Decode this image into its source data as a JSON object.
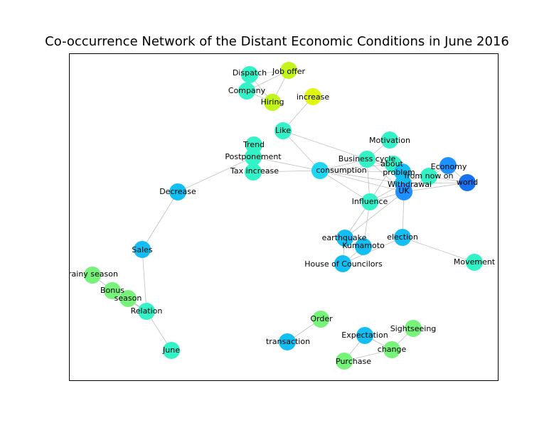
{
  "title": "Co-occurrence Network of the Distant Economic Conditions in June 2016",
  "colors": {
    "teal": "#33f2c8",
    "cyan": "#1ed6f0",
    "sky": "#13bff2",
    "blue": "#1e90ff",
    "deepblue": "#1672f0",
    "green": "#77f27a",
    "lime": "#c3f51c",
    "yellow": "#dff512",
    "edge": "#bfbfbf"
  },
  "nodes": [
    {
      "id": "dispatch",
      "label": "Dispatch",
      "color": "teal"
    },
    {
      "id": "joboffer",
      "label": "Job offer",
      "color": "lime"
    },
    {
      "id": "company",
      "label": "Company",
      "color": "teal"
    },
    {
      "id": "hiring",
      "label": "Hiring",
      "color": "lime"
    },
    {
      "id": "increase",
      "label": "increase",
      "color": "yellow"
    },
    {
      "id": "like",
      "label": "Like",
      "color": "teal"
    },
    {
      "id": "trend",
      "label": "Trend",
      "color": "teal"
    },
    {
      "id": "postponement",
      "label": "Postponement",
      "color": "teal"
    },
    {
      "id": "taxincrease",
      "label": "Tax increase",
      "color": "teal"
    },
    {
      "id": "motivation",
      "label": "Motivation",
      "color": "teal"
    },
    {
      "id": "businesscycle",
      "label": "Business cycle",
      "color": "teal"
    },
    {
      "id": "about",
      "label": "about",
      "color": "teal"
    },
    {
      "id": "consumption",
      "label": "consumption",
      "color": "cyan"
    },
    {
      "id": "problem",
      "label": "problem",
      "color": "sky"
    },
    {
      "id": "economy",
      "label": "Economy",
      "color": "blue"
    },
    {
      "id": "fromnowon",
      "label": "from now on",
      "color": "teal"
    },
    {
      "id": "world",
      "label": "world",
      "color": "deepblue"
    },
    {
      "id": "withdrawal",
      "label": "Withdrawal",
      "color": "sky"
    },
    {
      "id": "uk",
      "label": "UK",
      "color": "blue"
    },
    {
      "id": "decrease",
      "label": "Decrease",
      "color": "sky"
    },
    {
      "id": "influence",
      "label": "Influence",
      "color": "teal"
    },
    {
      "id": "earthquake",
      "label": "earthquake",
      "color": "sky"
    },
    {
      "id": "election",
      "label": "election",
      "color": "sky"
    },
    {
      "id": "kumamoto",
      "label": "Kumamoto",
      "color": "sky"
    },
    {
      "id": "houseofcouncilors",
      "label": "House of Councilors",
      "color": "sky"
    },
    {
      "id": "movement",
      "label": "Movement",
      "color": "teal"
    },
    {
      "id": "sales",
      "label": "Sales",
      "color": "sky"
    },
    {
      "id": "rainyseason",
      "label": "rainy season",
      "color": "green"
    },
    {
      "id": "bonus",
      "label": "Bonus",
      "color": "green"
    },
    {
      "id": "season",
      "label": "season",
      "color": "green"
    },
    {
      "id": "relation",
      "label": "Relation",
      "color": "teal"
    },
    {
      "id": "june",
      "label": "June",
      "color": "teal"
    },
    {
      "id": "order",
      "label": "Order",
      "color": "green"
    },
    {
      "id": "transaction",
      "label": "transaction",
      "color": "sky"
    },
    {
      "id": "expectation",
      "label": "Expectation",
      "color": "sky"
    },
    {
      "id": "sightseeing",
      "label": "Sightseeing",
      "color": "green"
    },
    {
      "id": "change",
      "label": "change",
      "color": "green"
    },
    {
      "id": "purchase",
      "label": "Purchase",
      "color": "green"
    }
  ],
  "edges": [
    [
      "dispatch",
      "company"
    ],
    [
      "dispatch",
      "hiring"
    ],
    [
      "joboffer",
      "company"
    ],
    [
      "joboffer",
      "hiring"
    ],
    [
      "dispatch",
      "joboffer"
    ],
    [
      "company",
      "hiring"
    ],
    [
      "increase",
      "like"
    ],
    [
      "like",
      "businesscycle"
    ],
    [
      "like",
      "consumption"
    ],
    [
      "taxincrease",
      "consumption"
    ],
    [
      "postponement",
      "consumption"
    ],
    [
      "trend",
      "postponement"
    ],
    [
      "postponement",
      "decrease"
    ],
    [
      "decrease",
      "sales"
    ],
    [
      "sales",
      "relation"
    ],
    [
      "rainyseason",
      "bonus"
    ],
    [
      "bonus",
      "season"
    ],
    [
      "season",
      "relation"
    ],
    [
      "bonus",
      "relation"
    ],
    [
      "relation",
      "june"
    ],
    [
      "consumption",
      "businesscycle"
    ],
    [
      "consumption",
      "about"
    ],
    [
      "consumption",
      "problem"
    ],
    [
      "consumption",
      "influence"
    ],
    [
      "consumption",
      "uk"
    ],
    [
      "consumption",
      "withdrawal"
    ],
    [
      "businesscycle",
      "about"
    ],
    [
      "businesscycle",
      "influence"
    ],
    [
      "businesscycle",
      "uk"
    ],
    [
      "businesscycle",
      "problem"
    ],
    [
      "motivation",
      "businesscycle"
    ],
    [
      "about",
      "problem"
    ],
    [
      "about",
      "uk"
    ],
    [
      "about",
      "influence"
    ],
    [
      "problem",
      "uk"
    ],
    [
      "problem",
      "withdrawal"
    ],
    [
      "uk",
      "withdrawal"
    ],
    [
      "uk",
      "world"
    ],
    [
      "uk",
      "economy"
    ],
    [
      "uk",
      "fromnowon"
    ],
    [
      "withdrawal",
      "world"
    ],
    [
      "fromnowon",
      "world"
    ],
    [
      "economy",
      "world"
    ],
    [
      "economy",
      "withdrawal"
    ],
    [
      "uk",
      "influence"
    ],
    [
      "withdrawal",
      "influence"
    ],
    [
      "influence",
      "earthquake"
    ],
    [
      "influence",
      "kumamoto"
    ],
    [
      "uk",
      "election"
    ],
    [
      "uk",
      "earthquake"
    ],
    [
      "earthquake",
      "kumamoto"
    ],
    [
      "kumamoto",
      "houseofcouncilors"
    ],
    [
      "earthquake",
      "houseofcouncilors"
    ],
    [
      "election",
      "movement"
    ],
    [
      "election",
      "houseofcouncilors"
    ],
    [
      "order",
      "transaction"
    ],
    [
      "expectation",
      "change"
    ],
    [
      "sightseeing",
      "change"
    ],
    [
      "change",
      "purchase"
    ],
    [
      "expectation",
      "purchase"
    ]
  ]
}
